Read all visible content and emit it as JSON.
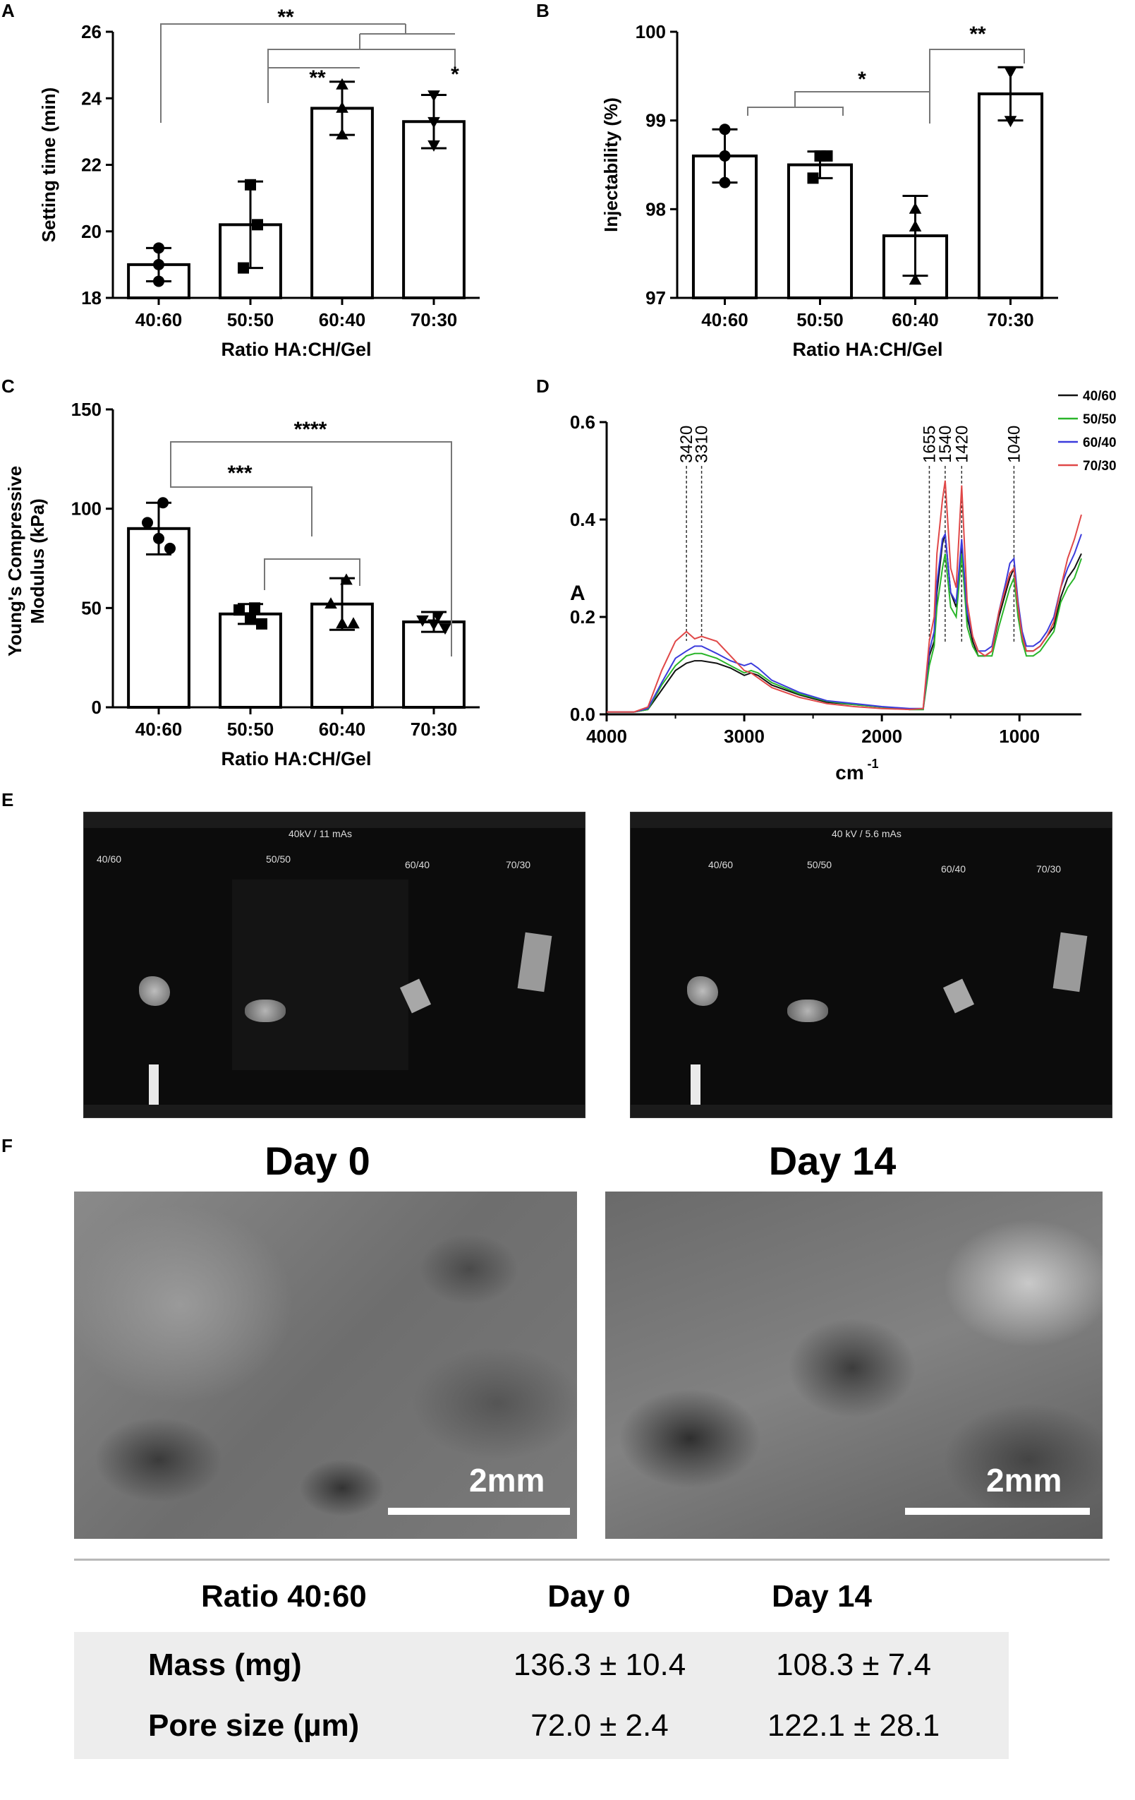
{
  "panels": {
    "A": "A",
    "B": "B",
    "C": "C",
    "D": "D",
    "E": "E",
    "F": "F"
  },
  "chart_data": [
    {
      "id": "A",
      "type": "bar",
      "categories": [
        "40:60",
        "50:50",
        "60:40",
        "70:30"
      ],
      "values": [
        19.0,
        20.2,
        23.7,
        23.3
      ],
      "errors": [
        0.5,
        1.3,
        0.8,
        0.8
      ],
      "points": [
        [
          19.5,
          19.0,
          18.5
        ],
        [
          21.4,
          20.2,
          18.9
        ],
        [
          24.4,
          23.7,
          22.9
        ],
        [
          24.1,
          23.3,
          22.6
        ]
      ],
      "markers": [
        "circle",
        "square",
        "triangle",
        "triangle-down"
      ],
      "ylabel": "Setting time (min)",
      "xlabel": "Ratio HA:CH/Gel",
      "ylim": [
        18,
        26
      ],
      "yticks": [
        18,
        20,
        22,
        24,
        26
      ],
      "significance": [
        "**",
        "**",
        "*"
      ]
    },
    {
      "id": "B",
      "type": "bar",
      "categories": [
        "40:60",
        "50:50",
        "60:40",
        "70:30"
      ],
      "values": [
        98.6,
        98.5,
        97.7,
        99.3
      ],
      "errors": [
        0.3,
        0.15,
        0.45,
        0.3
      ],
      "points": [
        [
          98.9,
          98.6,
          98.3
        ],
        [
          98.6,
          98.6,
          98.35
        ],
        [
          98.0,
          97.8,
          97.2
        ],
        [
          99.55,
          99.55,
          99.0
        ]
      ],
      "markers": [
        "circle",
        "square",
        "triangle",
        "triangle-down"
      ],
      "ylabel": "Injectability (%)",
      "xlabel": "Ratio HA:CH/Gel",
      "ylim": [
        97,
        100
      ],
      "yticks": [
        97,
        98,
        99,
        100
      ],
      "significance": [
        "*",
        "**"
      ]
    },
    {
      "id": "C",
      "type": "bar",
      "categories": [
        "40:60",
        "50:50",
        "60:40",
        "70:30"
      ],
      "values": [
        90,
        47,
        52,
        43
      ],
      "errors": [
        13,
        5,
        13,
        5
      ],
      "points": [
        [
          103,
          93,
          85,
          80
        ],
        [
          50,
          49,
          45,
          42
        ],
        [
          64,
          52,
          42,
          42
        ],
        [
          46,
          44,
          42,
          40
        ]
      ],
      "markers": [
        "circle",
        "square",
        "triangle",
        "triangle-down"
      ],
      "ylabel": "Young's Compressive Modulus (kPa)",
      "xlabel": "Ratio HA:CH/Gel",
      "ylim": [
        0,
        150
      ],
      "yticks": [
        0,
        50,
        100,
        150
      ],
      "significance": [
        "***",
        "****"
      ]
    },
    {
      "id": "D",
      "type": "line",
      "xlabel": "cm",
      "xlabel_sup": "-1",
      "ylabel": "A",
      "xlim": [
        4000,
        550
      ],
      "xticks": [
        4000,
        3000,
        2000,
        1000
      ],
      "ylim": [
        0,
        0.6
      ],
      "yticks": [
        "0.0",
        "0.2",
        "0.4",
        "0.6"
      ],
      "peaks": [
        "3420",
        "3310",
        "1655",
        "1540",
        "1420",
        "1040"
      ],
      "peak_x": [
        3420,
        3310,
        1655,
        1540,
        1420,
        1040
      ],
      "legend_position": "top-right",
      "x": [
        4000,
        3800,
        3700,
        3600,
        3500,
        3420,
        3360,
        3310,
        3200,
        3100,
        3000,
        2950,
        2900,
        2800,
        2600,
        2400,
        2200,
        2000,
        1800,
        1700,
        1655,
        1620,
        1600,
        1560,
        1540,
        1500,
        1460,
        1420,
        1380,
        1340,
        1300,
        1250,
        1200,
        1150,
        1100,
        1070,
        1040,
        1010,
        980,
        950,
        900,
        850,
        800,
        750,
        700,
        650,
        600,
        550
      ],
      "series": [
        {
          "name": "40/60",
          "color": "#111111",
          "y": [
            0.005,
            0.005,
            0.01,
            0.05,
            0.09,
            0.105,
            0.11,
            0.11,
            0.105,
            0.095,
            0.08,
            0.085,
            0.08,
            0.06,
            0.04,
            0.025,
            0.02,
            0.015,
            0.01,
            0.01,
            0.12,
            0.15,
            0.25,
            0.35,
            0.37,
            0.25,
            0.22,
            0.35,
            0.2,
            0.15,
            0.12,
            0.12,
            0.13,
            0.2,
            0.25,
            0.28,
            0.3,
            0.22,
            0.16,
            0.13,
            0.13,
            0.14,
            0.16,
            0.18,
            0.24,
            0.28,
            0.3,
            0.33
          ]
        },
        {
          "name": "50/50",
          "color": "#2ab52a",
          "y": [
            0.005,
            0.005,
            0.01,
            0.06,
            0.1,
            0.12,
            0.125,
            0.125,
            0.115,
            0.1,
            0.085,
            0.09,
            0.085,
            0.065,
            0.042,
            0.027,
            0.02,
            0.015,
            0.01,
            0.01,
            0.1,
            0.14,
            0.22,
            0.3,
            0.33,
            0.22,
            0.2,
            0.33,
            0.18,
            0.14,
            0.12,
            0.12,
            0.12,
            0.18,
            0.23,
            0.26,
            0.28,
            0.2,
            0.15,
            0.12,
            0.12,
            0.13,
            0.15,
            0.17,
            0.23,
            0.26,
            0.28,
            0.32
          ]
        },
        {
          "name": "60/40",
          "color": "#3b3bdc",
          "y": [
            0.005,
            0.005,
            0.012,
            0.065,
            0.115,
            0.13,
            0.14,
            0.14,
            0.125,
            0.11,
            0.1,
            0.105,
            0.095,
            0.07,
            0.045,
            0.028,
            0.022,
            0.016,
            0.012,
            0.012,
            0.13,
            0.17,
            0.27,
            0.36,
            0.37,
            0.25,
            0.23,
            0.36,
            0.21,
            0.16,
            0.13,
            0.13,
            0.14,
            0.21,
            0.27,
            0.31,
            0.32,
            0.23,
            0.17,
            0.14,
            0.14,
            0.15,
            0.17,
            0.2,
            0.26,
            0.3,
            0.33,
            0.37
          ]
        },
        {
          "name": "70/30",
          "color": "#e04848",
          "y": [
            0.005,
            0.005,
            0.015,
            0.09,
            0.15,
            0.17,
            0.155,
            0.16,
            0.15,
            0.12,
            0.09,
            0.085,
            0.075,
            0.055,
            0.035,
            0.022,
            0.016,
            0.012,
            0.01,
            0.012,
            0.15,
            0.2,
            0.33,
            0.44,
            0.48,
            0.3,
            0.26,
            0.47,
            0.23,
            0.16,
            0.13,
            0.12,
            0.13,
            0.21,
            0.26,
            0.29,
            0.3,
            0.22,
            0.16,
            0.13,
            0.13,
            0.14,
            0.16,
            0.19,
            0.26,
            0.32,
            0.36,
            0.41
          ]
        }
      ]
    }
  ],
  "xray": {
    "left": {
      "header": "40kV / 11 mAs",
      "labels": [
        "40/60",
        "50/50",
        "60/40",
        "70/30"
      ]
    },
    "right": {
      "header": "40 kV / 5.6 mAs",
      "labels": [
        "40/60",
        "50/50",
        "60/40",
        "70/30"
      ]
    }
  },
  "sem": {
    "day0": {
      "title": "Day 0",
      "scale": "2mm"
    },
    "day14": {
      "title": "Day 14",
      "scale": "2mm"
    }
  },
  "table": {
    "headers": [
      "Ratio 40:60",
      "Day 0",
      "Day 14"
    ],
    "rows": [
      [
        "Mass (mg)",
        "136.3 ± 10.4",
        "108.3 ± 7.4"
      ],
      [
        "Pore size (µm)",
        "72.0 ± 2.4",
        "122.1 ± 28.1"
      ]
    ]
  }
}
